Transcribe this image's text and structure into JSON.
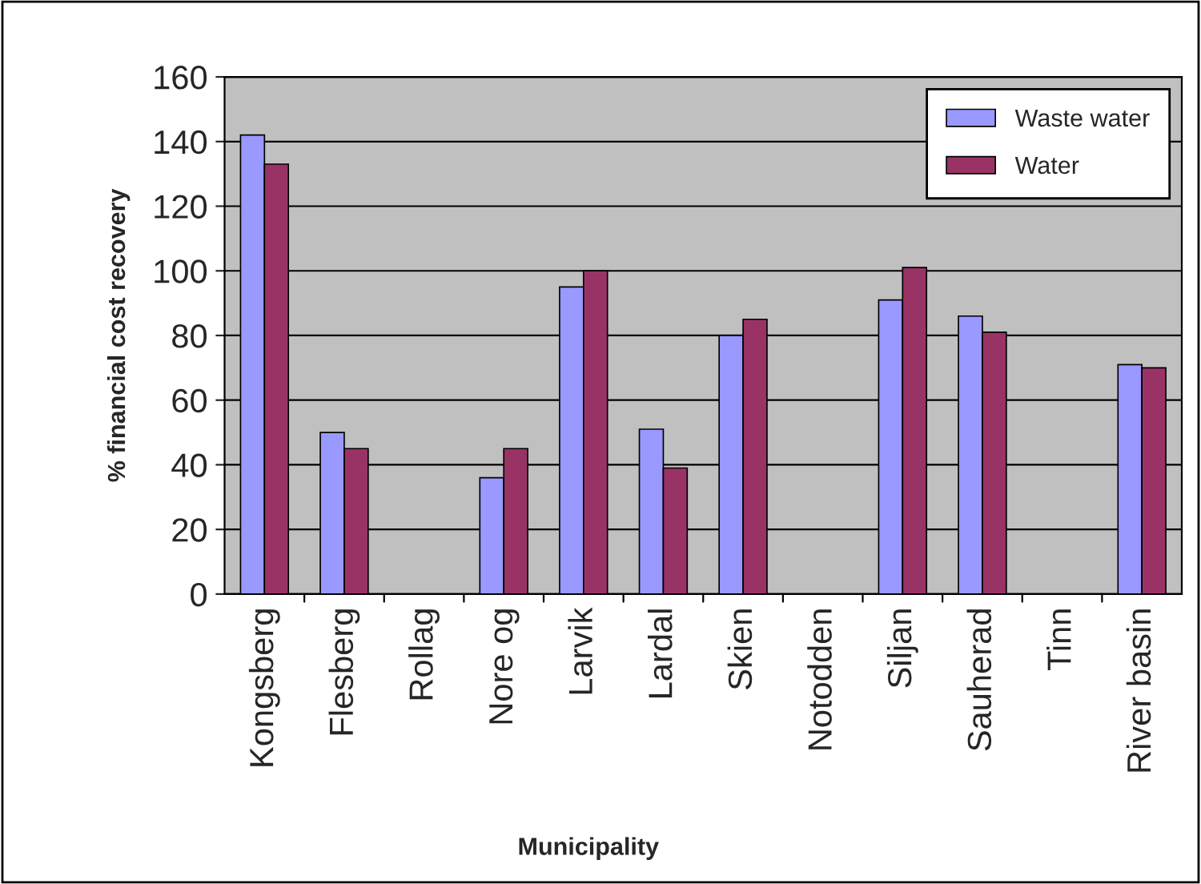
{
  "chart_data": {
    "type": "bar",
    "xlabel": "Municipality",
    "ylabel": "% financial cost recovery",
    "categories": [
      "Kongsberg",
      "Flesberg",
      "Rollag",
      "Nore og",
      "Larvik",
      "Lardal",
      "Skien",
      "Notodden",
      "Siljan",
      "Sauherad",
      "Tinn",
      "River basin"
    ],
    "series": [
      {
        "name": "Waste water",
        "color": "#9999ff",
        "values": [
          142,
          50,
          null,
          36,
          95,
          51,
          80,
          null,
          91,
          86,
          null,
          71
        ]
      },
      {
        "name": "Water",
        "color": "#993366",
        "values": [
          133,
          45,
          null,
          45,
          100,
          39,
          85,
          null,
          101,
          81,
          null,
          70
        ]
      }
    ],
    "ylim": [
      0,
      160
    ],
    "yticks": [
      0,
      20,
      40,
      60,
      80,
      100,
      120,
      140,
      160
    ],
    "grid": "y",
    "legend": "top right"
  }
}
